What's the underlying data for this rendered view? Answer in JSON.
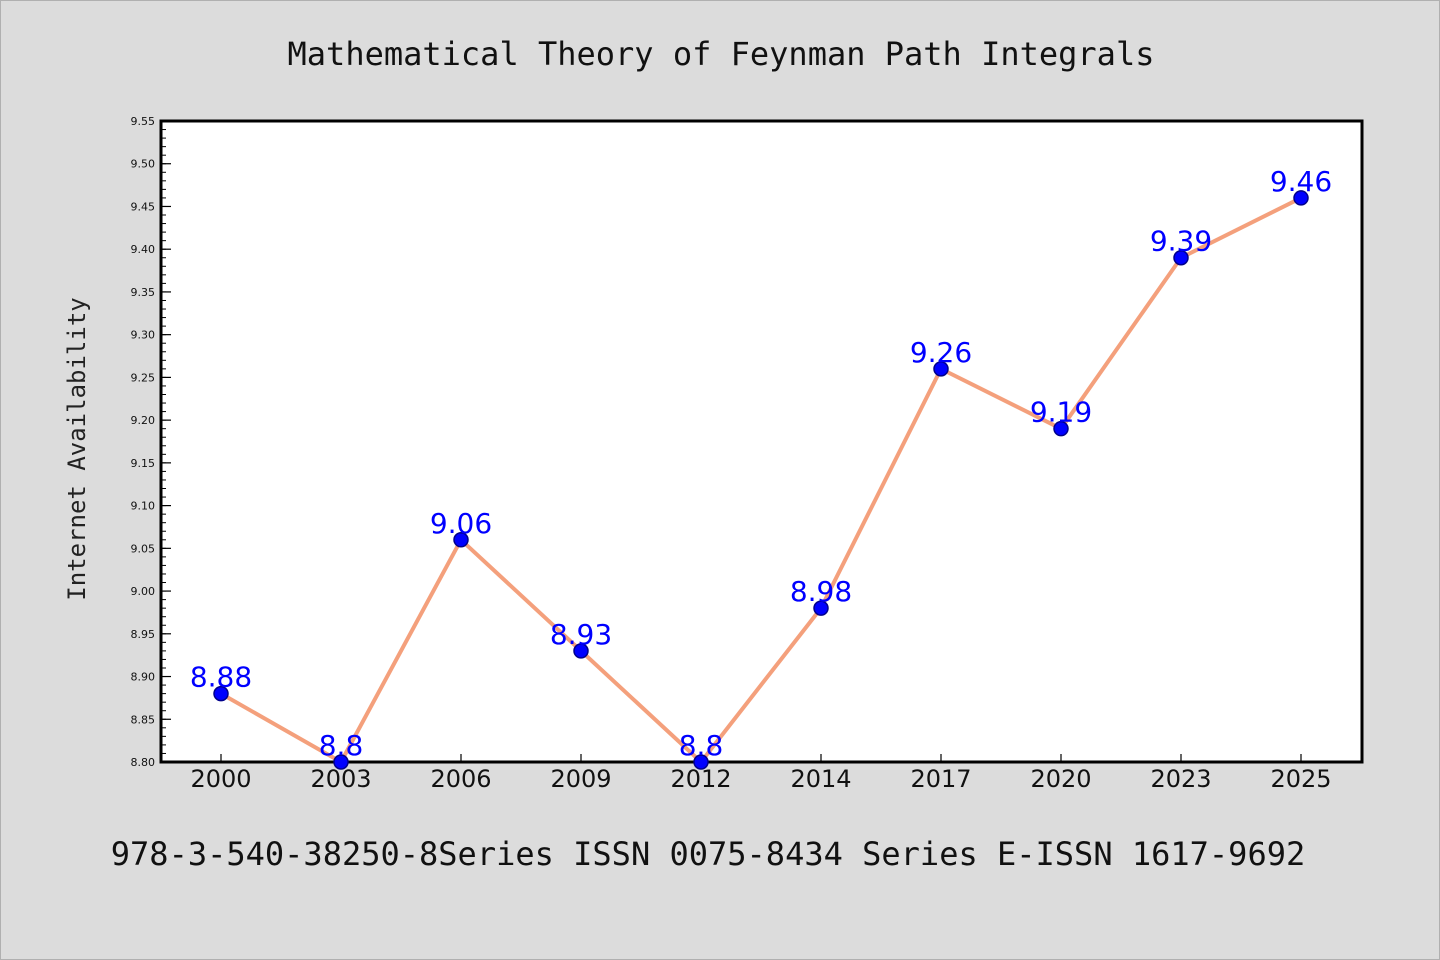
{
  "colors": {
    "background": "#dcdcdc",
    "plot_background": "#ffffff",
    "line": "#f4a07c",
    "marker": "#0000ff",
    "marker_edge": "#00008b",
    "data_label": "#0000ff"
  },
  "footer": {
    "text": "978-3-540-38250-8Series ISSN 0075-8434 Series E-ISSN 1617-9692"
  },
  "chart_data": {
    "type": "line",
    "title": "Mathematical Theory of Feynman Path Integrals",
    "xlabel": "",
    "ylabel": "Internet Availability",
    "categories": [
      "2000",
      "2003",
      "2006",
      "2009",
      "2012",
      "2014",
      "2017",
      "2020",
      "2023",
      "2025"
    ],
    "series": [
      {
        "values": [
          8.88,
          8.8,
          9.06,
          8.93,
          8.8,
          8.98,
          9.26,
          9.19,
          9.39,
          9.46
        ],
        "data_labels": [
          "8.88",
          "8.8",
          "9.06",
          "8.93",
          "8.8",
          "8.98",
          "9.26",
          "9.19",
          "9.39",
          "9.46"
        ]
      }
    ],
    "ylim": [
      8.8,
      9.55
    ],
    "y_ticks": [
      "8.80",
      "8.85",
      "8.90",
      "8.95",
      "9.00",
      "9.05",
      "9.10",
      "9.15",
      "9.20",
      "9.25",
      "9.30",
      "9.35",
      "9.40",
      "9.45",
      "9.50",
      "9.55"
    ],
    "y_minor_step": 0.01,
    "grid": false,
    "legend": "none"
  }
}
